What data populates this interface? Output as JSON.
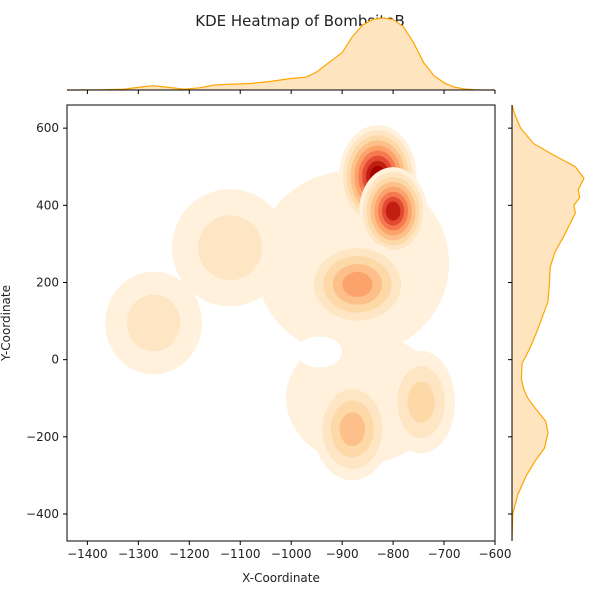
{
  "chart_data": {
    "type": "heatmap",
    "title": "KDE Heatmap of BombsiteB",
    "xlabel": "X-Coordinate",
    "ylabel": "Y-Coordinate",
    "xlim": [
      -1440,
      -600
    ],
    "ylim": [
      -470,
      660
    ],
    "xticks": [
      -1400,
      -1300,
      -1200,
      -1100,
      -1000,
      -900,
      -800,
      -700,
      -600
    ],
    "yticks": [
      -400,
      -200,
      0,
      200,
      400,
      600
    ],
    "colormap": "OrRd",
    "marginal_color": "#ffa500",
    "marginal_fill": "#ffe5bf",
    "grid": false,
    "density_peaks": [
      {
        "x": -830,
        "y": 475,
        "weight": 1.0,
        "sx": 40,
        "sy": 70
      },
      {
        "x": -800,
        "y": 385,
        "weight": 0.85,
        "sx": 35,
        "sy": 60
      },
      {
        "x": -870,
        "y": 195,
        "weight": 0.55,
        "sx": 55,
        "sy": 60
      },
      {
        "x": -880,
        "y": -180,
        "weight": 0.45,
        "sx": 40,
        "sy": 70
      },
      {
        "x": -745,
        "y": -110,
        "weight": 0.35,
        "sx": 35,
        "sy": 70
      },
      {
        "x": -1120,
        "y": 290,
        "weight": 0.2,
        "sx": 60,
        "sy": 80
      },
      {
        "x": -1270,
        "y": 95,
        "weight": 0.12,
        "sx": 50,
        "sy": 70
      }
    ],
    "x_marginal": {
      "x": [
        -1440,
        -1380,
        -1330,
        -1290,
        -1270,
        -1245,
        -1210,
        -1180,
        -1150,
        -1120,
        -1080,
        -1040,
        -1000,
        -970,
        -950,
        -930,
        -900,
        -880,
        -860,
        -840,
        -820,
        -800,
        -780,
        -760,
        -740,
        -720,
        -700,
        -680,
        -660,
        -640,
        -620,
        -600
      ],
      "density": [
        0,
        0.002,
        0.01,
        0.045,
        0.06,
        0.04,
        0.01,
        0.03,
        0.07,
        0.08,
        0.09,
        0.12,
        0.16,
        0.18,
        0.25,
        0.36,
        0.52,
        0.74,
        0.9,
        0.98,
        1.0,
        0.98,
        0.88,
        0.66,
        0.38,
        0.2,
        0.1,
        0.04,
        0.015,
        0.004,
        0.001,
        0
      ]
    },
    "y_marginal": {
      "y": [
        -470,
        -400,
        -350,
        -300,
        -260,
        -230,
        -190,
        -160,
        -130,
        -100,
        -80,
        -50,
        -10,
        30,
        70,
        110,
        150,
        200,
        240,
        280,
        320,
        350,
        380,
        400,
        420,
        440,
        470,
        500,
        530,
        560,
        600,
        640,
        660
      ],
      "density": [
        0,
        0.01,
        0.08,
        0.2,
        0.33,
        0.45,
        0.5,
        0.47,
        0.34,
        0.22,
        0.17,
        0.13,
        0.14,
        0.25,
        0.34,
        0.42,
        0.5,
        0.52,
        0.53,
        0.6,
        0.72,
        0.8,
        0.88,
        0.86,
        0.94,
        0.92,
        1.0,
        0.88,
        0.58,
        0.3,
        0.12,
        0.03,
        0
      ]
    }
  }
}
